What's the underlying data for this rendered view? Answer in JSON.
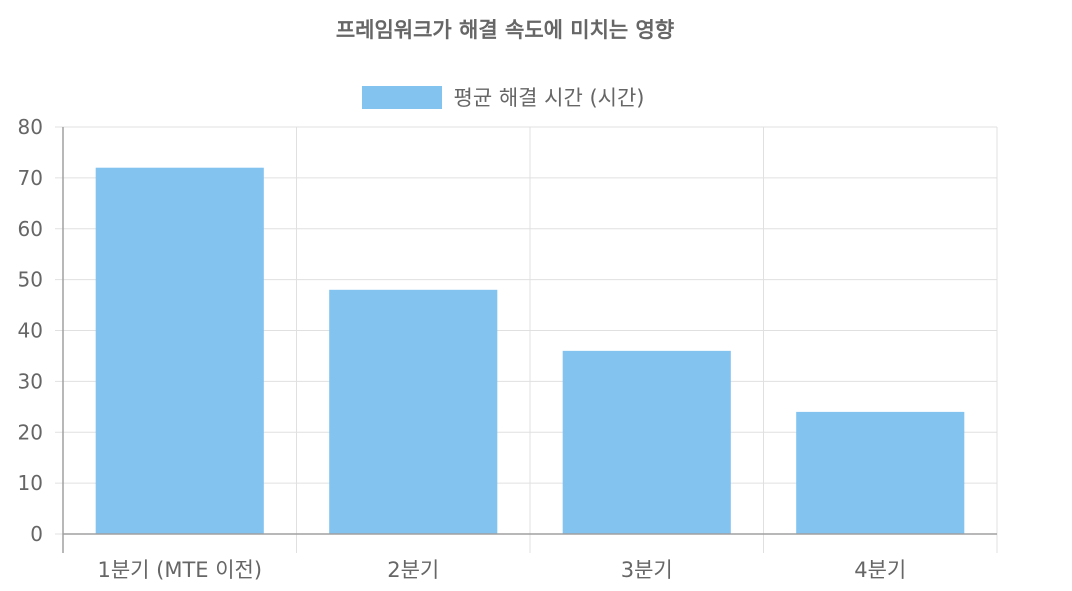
{
  "chart_data": {
    "type": "bar",
    "title": "프레임워크가 해결 속도에 미치는 영향",
    "categories": [
      "1분기 (MTE 이전)",
      "2분기",
      "3분기",
      "4분기"
    ],
    "series": [
      {
        "name": "평균 해결 시간 (시간)",
        "values": [
          72,
          48,
          36,
          24
        ],
        "color": "#82C3F0"
      }
    ],
    "xlabel": "",
    "ylabel": "",
    "ylim": [
      0,
      80
    ],
    "yticks": [
      0,
      10,
      20,
      30,
      40,
      50,
      60,
      70,
      80
    ],
    "grid": true,
    "legend_position": "top"
  },
  "colors": {
    "bar": "#82C3F0",
    "grid": "#e0e0e0",
    "axis": "#a0a0a0",
    "text": "#666666"
  }
}
